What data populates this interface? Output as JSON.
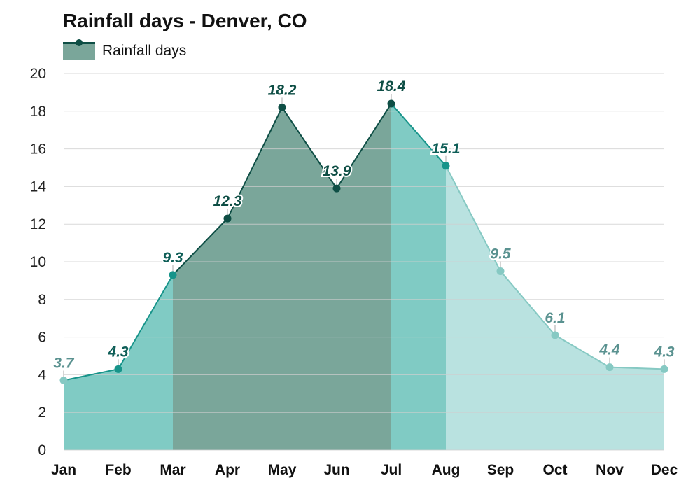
{
  "chart_data": {
    "type": "area",
    "title": "Rainfall days - Denver, CO",
    "legend": {
      "position": "top-left",
      "label": "Rainfall days"
    },
    "categories": [
      "Jan",
      "Feb",
      "Mar",
      "Apr",
      "May",
      "Jun",
      "Jul",
      "Aug",
      "Sep",
      "Oct",
      "Nov",
      "Dec"
    ],
    "series": [
      {
        "name": "Rainfall days",
        "values": [
          3.7,
          4.3,
          9.3,
          12.3,
          18.2,
          13.9,
          18.4,
          15.1,
          9.5,
          6.1,
          4.4,
          4.3
        ]
      }
    ],
    "value_labels": [
      "3.7",
      "4.3",
      "9.3",
      "12.3",
      "18.2",
      "13.9",
      "18.4",
      "15.1",
      "9.5",
      "6.1",
      "4.4",
      "4.3"
    ],
    "ylim": [
      0,
      20
    ],
    "yticks": [
      0,
      2,
      4,
      6,
      8,
      10,
      12,
      14,
      16,
      18,
      20
    ],
    "grid": true,
    "colors": {
      "Jan": "#b9e2e0",
      "Feb": "#80cbc4",
      "Mar": "#80cbc4",
      "Apr": "#7aa69a",
      "May": "#7aa69a",
      "Jun": "#7aa69a",
      "Jul": "#7aa69a",
      "Aug": "#80cbc4",
      "Sep": "#b9e2e0",
      "Oct": "#b9e2e0",
      "Nov": "#b9e2e0",
      "Dec": "#b9e2e0"
    }
  }
}
